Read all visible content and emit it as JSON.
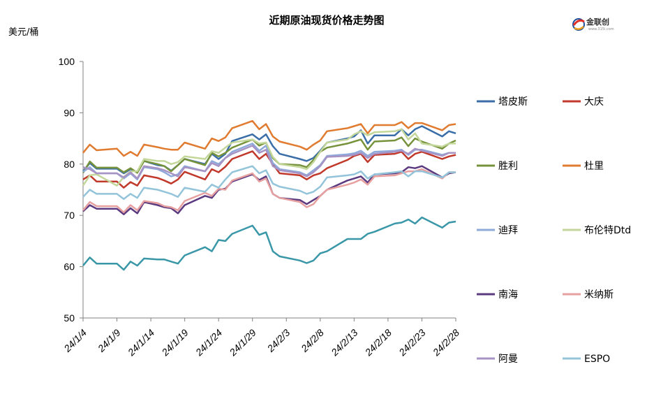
{
  "logo": {
    "text": "金联创",
    "sub": "www.315i.com"
  },
  "chart_data": {
    "type": "line",
    "title": "近期原油现货价格走势图",
    "ylabel": "美元/桶",
    "xlabel": "",
    "ylim": [
      50,
      100
    ],
    "yticks": [
      50,
      60,
      70,
      80,
      90,
      100
    ],
    "grid": false,
    "legend_position": "right",
    "x_tick_labels": [
      "24/1/4",
      "24/1/9",
      "24/1/14",
      "24/1/19",
      "24/1/24",
      "24/1/29",
      "24/2/3",
      "24/2/8",
      "24/2/13",
      "24/2/18",
      "24/2/23",
      "24/2/28"
    ],
    "x_start": "2024-01-04",
    "x_end": "2024-02-28",
    "x_dates": [
      "2024-01-04",
      "2024-01-05",
      "2024-01-06",
      "2024-01-09",
      "2024-01-10",
      "2024-01-11",
      "2024-01-12",
      "2024-01-13",
      "2024-01-15",
      "2024-01-16",
      "2024-01-17",
      "2024-01-18",
      "2024-01-19",
      "2024-01-22",
      "2024-01-23",
      "2024-01-24",
      "2024-01-25",
      "2024-01-26",
      "2024-01-29",
      "2024-01-30",
      "2024-01-31",
      "2024-02-01",
      "2024-02-02",
      "2024-02-05",
      "2024-02-06",
      "2024-02-07",
      "2024-02-08",
      "2024-02-09",
      "2024-02-12",
      "2024-02-13",
      "2024-02-14",
      "2024-02-15",
      "2024-02-16",
      "2024-02-19",
      "2024-02-20",
      "2024-02-21",
      "2024-02-22",
      "2024-02-23",
      "2024-02-26",
      "2024-02-27",
      "2024-02-28"
    ],
    "series": [
      {
        "name": "塔皮斯",
        "color": "#3a6ea8",
        "values": [
          78.6,
          80.2,
          79.1,
          79.1,
          78.2,
          79.0,
          78.4,
          80.6,
          79.8,
          79.6,
          78.7,
          79.8,
          81.0,
          80.0,
          82.0,
          81.0,
          82.0,
          84.5,
          85.8,
          84.8,
          85.8,
          83.5,
          82.0,
          81.0,
          80.6,
          81.2,
          82.6,
          84.2,
          85.0,
          85.4,
          86.6,
          84.0,
          85.6,
          85.6,
          86.8,
          85.6,
          86.8,
          87.4,
          85.4,
          86.4,
          86.0
        ]
      },
      {
        "name": "大庆",
        "color": "#c0392b",
        "values": [
          77.0,
          77.8,
          76.6,
          76.6,
          75.4,
          76.5,
          75.8,
          77.8,
          77.3,
          76.8,
          76.2,
          77.0,
          78.5,
          77.0,
          79.0,
          78.4,
          79.5,
          81.0,
          82.5,
          81.0,
          82.0,
          80.0,
          78.2,
          77.8,
          77.0,
          77.8,
          78.2,
          79.2,
          80.8,
          81.6,
          82.0,
          80.4,
          81.8,
          82.0,
          82.4,
          81.0,
          82.0,
          82.4,
          81.0,
          81.5,
          81.8
        ]
      },
      {
        "name": "胜利",
        "color": "#76933c",
        "values": [
          78.3,
          80.5,
          79.3,
          79.3,
          78.4,
          79.2,
          78.3,
          80.6,
          80.0,
          79.6,
          78.6,
          79.8,
          81.0,
          79.8,
          82.2,
          81.5,
          82.2,
          83.2,
          84.8,
          83.6,
          84.2,
          81.2,
          80.0,
          79.8,
          79.4,
          80.8,
          82.4,
          83.2,
          84.0,
          84.4,
          84.8,
          82.8,
          84.4,
          84.6,
          85.2,
          83.5,
          85.0,
          84.4,
          83.0,
          84.0,
          84.6
        ]
      },
      {
        "name": "杜里",
        "color": "#e07b30",
        "values": [
          82.2,
          83.8,
          82.7,
          83.0,
          81.6,
          82.4,
          81.6,
          83.8,
          83.3,
          83.0,
          82.8,
          82.8,
          84.2,
          83.0,
          85.0,
          84.5,
          85.2,
          87.0,
          88.4,
          86.8,
          87.8,
          85.4,
          84.4,
          83.4,
          82.8,
          83.8,
          84.6,
          86.4,
          87.0,
          87.4,
          87.8,
          86.0,
          87.6,
          87.6,
          88.2,
          87.0,
          88.0,
          88.0,
          86.6,
          87.6,
          87.8
        ]
      },
      {
        "name": "迪拜",
        "color": "#8eaadb",
        "values": [
          78.5,
          79.4,
          78.2,
          78.2,
          77.2,
          78.2,
          77.0,
          79.4,
          79.0,
          78.4,
          77.6,
          78.0,
          79.6,
          78.6,
          80.6,
          80.0,
          81.2,
          82.4,
          84.0,
          82.6,
          83.6,
          80.2,
          79.0,
          78.4,
          77.8,
          78.8,
          79.8,
          81.6,
          81.9,
          82.1,
          82.6,
          81.6,
          82.4,
          82.6,
          82.8,
          81.8,
          82.8,
          82.8,
          81.8,
          82.2,
          82.2
        ]
      },
      {
        "name": "布伦特Dtd",
        "color": "#c4d79b",
        "values": [
          75.8,
          77.8,
          78.0,
          75.8,
          77.5,
          78.6,
          78.6,
          81.0,
          80.6,
          80.6,
          80.0,
          80.4,
          81.5,
          81.0,
          82.5,
          82.2,
          83.2,
          84.2,
          84.8,
          84.0,
          84.2,
          81.4,
          80.0,
          79.4,
          79.0,
          80.4,
          82.4,
          84.2,
          84.8,
          85.8,
          86.4,
          85.6,
          86.2,
          86.4,
          86.8,
          84.8,
          86.0,
          84.0,
          83.4,
          84.0,
          84.0
        ]
      },
      {
        "name": "南海",
        "color": "#5b3a80",
        "values": [
          70.8,
          72.0,
          71.3,
          71.3,
          70.2,
          71.4,
          70.4,
          72.6,
          72.0,
          71.6,
          71.4,
          70.4,
          72.0,
          73.8,
          73.4,
          75.0,
          75.2,
          76.6,
          78.0,
          76.9,
          77.6,
          74.2,
          73.4,
          73.0,
          72.2,
          73.0,
          73.8,
          75.0,
          76.8,
          77.2,
          77.6,
          76.4,
          78.0,
          78.2,
          78.4,
          79.4,
          79.2,
          79.6,
          77.4,
          78.2,
          78.4
        ]
      },
      {
        "name": "米纳斯",
        "color": "#e6a0a0",
        "values": [
          71.0,
          72.6,
          71.8,
          71.8,
          70.6,
          72.0,
          71.0,
          72.8,
          72.4,
          71.8,
          71.6,
          71.0,
          72.8,
          74.4,
          73.8,
          75.2,
          75.0,
          76.8,
          78.2,
          76.6,
          77.2,
          74.2,
          73.4,
          72.6,
          71.6,
          72.2,
          73.8,
          75.0,
          76.0,
          76.4,
          77.0,
          76.0,
          77.6,
          77.8,
          78.2,
          78.6,
          78.6,
          79.0,
          77.2,
          78.4,
          78.4
        ]
      },
      {
        "name": "阿曼",
        "color": "#a793c4",
        "values": [
          79.4,
          79.0,
          78.2,
          78.2,
          77.4,
          78.4,
          77.2,
          79.6,
          79.2,
          78.8,
          78.2,
          77.6,
          79.4,
          78.6,
          80.2,
          79.6,
          81.2,
          82.0,
          83.6,
          82.2,
          82.8,
          79.6,
          78.8,
          78.2,
          77.6,
          78.4,
          79.6,
          81.4,
          81.6,
          81.8,
          82.2,
          81.2,
          82.0,
          82.4,
          82.6,
          82.0,
          83.0,
          82.6,
          81.6,
          82.2,
          82.2
        ]
      },
      {
        "name": "ESPO",
        "color": "#93c4da",
        "values": [
          73.6,
          75.0,
          74.2,
          74.2,
          73.2,
          74.2,
          73.4,
          75.4,
          75.0,
          74.6,
          74.2,
          73.6,
          75.4,
          74.6,
          76.0,
          75.4,
          77.0,
          78.4,
          79.6,
          78.2,
          78.8,
          76.2,
          75.6,
          74.8,
          74.2,
          74.6,
          75.6,
          77.4,
          77.8,
          78.0,
          78.6,
          77.2,
          78.0,
          78.4,
          78.6,
          77.6,
          78.6,
          78.6,
          77.4,
          78.4,
          78.4
        ]
      },
      {
        "name": "",
        "color": "#3a97a8",
        "values": [
          60.2,
          61.8,
          60.6,
          60.6,
          59.4,
          61.0,
          60.2,
          61.6,
          61.4,
          61.4,
          61.0,
          60.6,
          62.2,
          63.8,
          63.0,
          65.2,
          65.0,
          66.4,
          68.0,
          66.2,
          66.7,
          63.0,
          62.0,
          61.2,
          60.7,
          61.2,
          62.6,
          63.0,
          65.4,
          65.4,
          65.4,
          66.4,
          66.8,
          68.4,
          68.6,
          69.2,
          68.4,
          69.6,
          67.6,
          68.6,
          68.8
        ]
      }
    ]
  }
}
